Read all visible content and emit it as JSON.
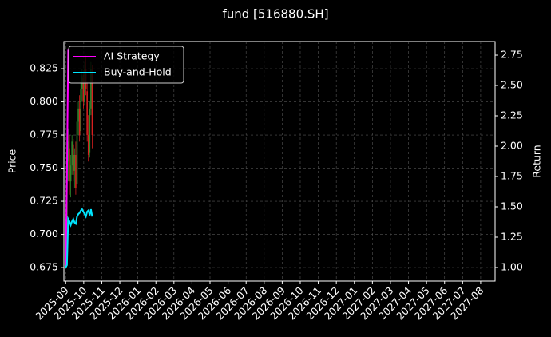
{
  "chart_data": {
    "type": "candlestick",
    "title": "fund [516880.SH]",
    "ylabel": "Price",
    "y2label": "Return",
    "x": [
      0,
      0.07,
      0.14,
      0.21,
      0.28,
      0.35,
      0.42,
      0.49,
      0.56,
      0.63,
      0.7,
      0.77,
      0.84,
      0.91,
      0.98,
      1.05,
      1.12,
      1.19,
      1.26,
      1.33,
      1.4,
      1.47
    ],
    "open": [
      0.7,
      0.69,
      0.755,
      0.765,
      0.74,
      0.752,
      0.768,
      0.748,
      0.76,
      0.738,
      0.785,
      0.795,
      0.778,
      0.81,
      0.818,
      0.8,
      0.825,
      0.808,
      0.775,
      0.762,
      0.795,
      0.822
    ],
    "high": [
      0.706,
      0.76,
      0.78,
      0.775,
      0.76,
      0.775,
      0.772,
      0.765,
      0.77,
      0.79,
      0.8,
      0.805,
      0.815,
      0.825,
      0.822,
      0.83,
      0.835,
      0.815,
      0.79,
      0.8,
      0.83,
      0.828
    ],
    "low": [
      0.678,
      0.688,
      0.74,
      0.73,
      0.728,
      0.745,
      0.74,
      0.735,
      0.73,
      0.735,
      0.775,
      0.77,
      0.775,
      0.8,
      0.795,
      0.798,
      0.805,
      0.77,
      0.755,
      0.758,
      0.79,
      0.765
    ],
    "close": [
      0.685,
      0.755,
      0.77,
      0.74,
      0.752,
      0.77,
      0.745,
      0.76,
      0.735,
      0.785,
      0.795,
      0.775,
      0.81,
      0.82,
      0.8,
      0.825,
      0.81,
      0.775,
      0.76,
      0.795,
      0.825,
      0.775
    ],
    "up_color": "#2e8b2e",
    "down_color": "#d62020",
    "series": [
      {
        "name": "AI Strategy",
        "color": "#ff00ff",
        "axis": "y2",
        "values": [
          1.0,
          1.75,
          2.8,
          null,
          null,
          null,
          null,
          null,
          null,
          null,
          null,
          null,
          null,
          null,
          null,
          null,
          null,
          null,
          null,
          null,
          null,
          null
        ]
      },
      {
        "name": "Buy-and-Hold",
        "color": "#00e5ff",
        "axis": "y2",
        "values": [
          1.0,
          1.02,
          1.4,
          1.38,
          1.35,
          1.38,
          1.4,
          1.37,
          1.36,
          1.42,
          1.44,
          1.45,
          1.47,
          1.48,
          1.46,
          1.44,
          1.42,
          1.46,
          1.47,
          1.43,
          1.48,
          1.42
        ]
      }
    ],
    "xlim": [
      -0.1,
      23.8
    ],
    "xticks": [
      {
        "value": 0,
        "label": "2025-09"
      },
      {
        "value": 1,
        "label": "2025-10"
      },
      {
        "value": 2,
        "label": "2025-11"
      },
      {
        "value": 3,
        "label": "2025-12"
      },
      {
        "value": 4,
        "label": "2026-01"
      },
      {
        "value": 5,
        "label": "2026-02"
      },
      {
        "value": 6,
        "label": "2026-03"
      },
      {
        "value": 7,
        "label": "2026-04"
      },
      {
        "value": 8,
        "label": "2026-05"
      },
      {
        "value": 9,
        "label": "2026-06"
      },
      {
        "value": 10,
        "label": "2026-07"
      },
      {
        "value": 11,
        "label": "2026-08"
      },
      {
        "value": 12,
        "label": "2026-09"
      },
      {
        "value": 13,
        "label": "2026-10"
      },
      {
        "value": 14,
        "label": "2026-11"
      },
      {
        "value": 15,
        "label": "2026-12"
      },
      {
        "value": 16,
        "label": "2027-01"
      },
      {
        "value": 17,
        "label": "2027-02"
      },
      {
        "value": 18,
        "label": "2027-03"
      },
      {
        "value": 19,
        "label": "2027-04"
      },
      {
        "value": 20,
        "label": "2027-05"
      },
      {
        "value": 21,
        "label": "2027-06"
      },
      {
        "value": 22,
        "label": "2027-07"
      },
      {
        "value": 23,
        "label": "2027-08"
      }
    ],
    "ylim": [
      0.6648,
      0.8455
    ],
    "yticks": [
      0.675,
      {
        "value": 0.7,
        "label": "0.700"
      },
      0.725,
      {
        "value": 0.75,
        "label": "0.750"
      },
      0.775,
      {
        "value": 0.8,
        "label": "0.800"
      },
      0.825
    ],
    "y2lim": [
      0.888,
      2.862
    ],
    "y2ticks": [
      {
        "value": 1,
        "label": "1.00"
      },
      1.25,
      {
        "value": 1.5,
        "label": "1.50"
      },
      1.75,
      {
        "value": 2,
        "label": "2.00"
      },
      2.25,
      {
        "value": 2.5,
        "label": "2.50"
      },
      2.75
    ],
    "grid": true,
    "legend": "upper left"
  }
}
